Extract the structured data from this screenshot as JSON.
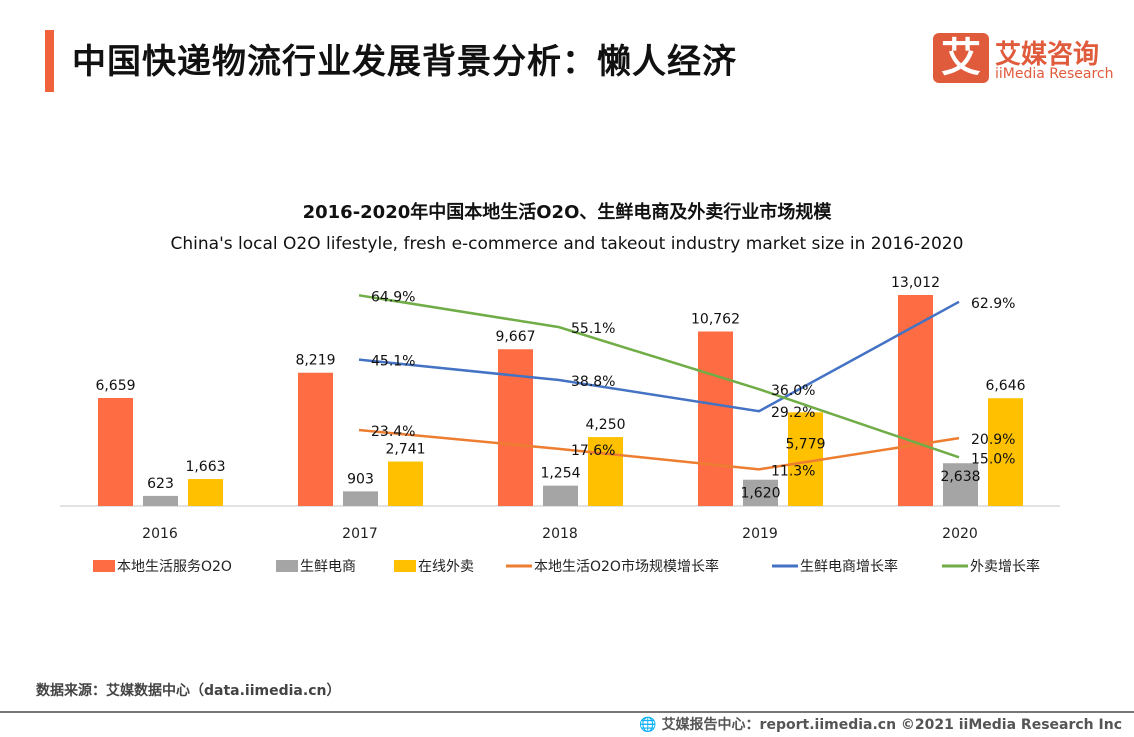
{
  "header": {
    "title": "中国快递物流行业发展背景分析：懒人经济",
    "logo_mark": "艾",
    "logo_cn": "艾媒咨询",
    "logo_en": "iiMedia Research",
    "accent": "#f0623c"
  },
  "chart_data": {
    "type": "bar+line",
    "title": "2016-2020年中国本地生活O2O、生鲜电商及外卖行业市场规模",
    "subtitle": "China's local O2O lifestyle, fresh e-commerce and takeout industry market size in 2016-2020",
    "categories": [
      "2016",
      "2017",
      "2018",
      "2019",
      "2020"
    ],
    "bar_series": [
      {
        "name": "本地生活服务O2O",
        "color": "#fd6c42",
        "values": [
          6659,
          8219,
          9667,
          10762,
          13012
        ],
        "labels": [
          "6,659",
          "8,219",
          "9,667",
          "10,762",
          "13,012"
        ]
      },
      {
        "name": "生鲜电商",
        "color": "#a5a5a5",
        "values": [
          623,
          903,
          1254,
          1620,
          2638
        ],
        "labels": [
          "623",
          "903",
          "1,254",
          "1,620",
          "2,638"
        ]
      },
      {
        "name": "在线外卖",
        "color": "#ffc000",
        "values": [
          1663,
          2741,
          4250,
          5779,
          6646
        ],
        "labels": [
          "1,663",
          "2,741",
          "4,250",
          "5,779",
          "6,646"
        ]
      }
    ],
    "line_series": [
      {
        "name": "本地生活O2O市场规模增长率",
        "color": "#ed7d31",
        "values": [
          null,
          23.4,
          17.6,
          11.3,
          20.9
        ],
        "labels": [
          null,
          "23.4%",
          "17.6%",
          "11.3%",
          "20.9%"
        ]
      },
      {
        "name": "生鲜电商增长率",
        "color": "#4472c4",
        "values": [
          null,
          45.1,
          38.8,
          29.2,
          62.9
        ],
        "labels": [
          null,
          "45.1%",
          "38.8%",
          "29.2%",
          "62.9%"
        ]
      },
      {
        "name": "外卖增长率",
        "color": "#70ad47",
        "values": [
          null,
          64.9,
          55.1,
          36.0,
          15.0
        ],
        "labels": [
          null,
          "64.9%",
          "55.1%",
          "36.0%",
          "15.0%"
        ]
      }
    ],
    "bar_ylim": [
      0,
      13012
    ],
    "line_ylim": [
      0,
      65
    ],
    "grid": false,
    "legend": "bottom"
  },
  "footer": {
    "source": "数据来源：艾媒数据中心（data.iimedia.cn）",
    "report": "艾媒报告中心：report.iimedia.cn   ©2021  iiMedia Research  Inc",
    "globe_icon": "globe-icon"
  }
}
